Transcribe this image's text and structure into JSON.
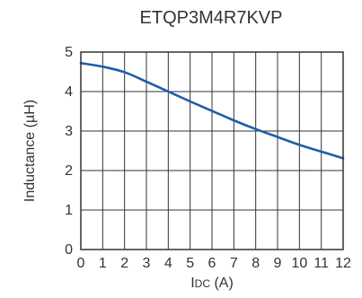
{
  "chart_data": {
    "type": "line",
    "title": "ETQP3M4R7KVP",
    "xlabel": {
      "main": "I",
      "sub": "DC",
      "suffix": " (A)"
    },
    "ylabel": "Inductance (µH)",
    "xlim": [
      0,
      12
    ],
    "ylim": [
      0,
      5
    ],
    "x_ticks": [
      0,
      1,
      2,
      3,
      4,
      5,
      6,
      7,
      8,
      9,
      10,
      11,
      12
    ],
    "y_ticks": [
      0,
      1,
      2,
      3,
      4,
      5
    ],
    "grid": true,
    "legend": "none",
    "colors": {
      "series": "#1f5ea8",
      "grid": "#333333",
      "text": "#333333"
    },
    "series": [
      {
        "x": [
          0,
          1,
          2,
          3,
          4,
          5,
          6,
          7,
          8,
          9,
          10,
          11,
          12
        ],
        "values": [
          4.72,
          4.63,
          4.49,
          4.25,
          4.0,
          3.75,
          3.51,
          3.27,
          3.05,
          2.85,
          2.65,
          2.48,
          2.31
        ]
      }
    ]
  }
}
